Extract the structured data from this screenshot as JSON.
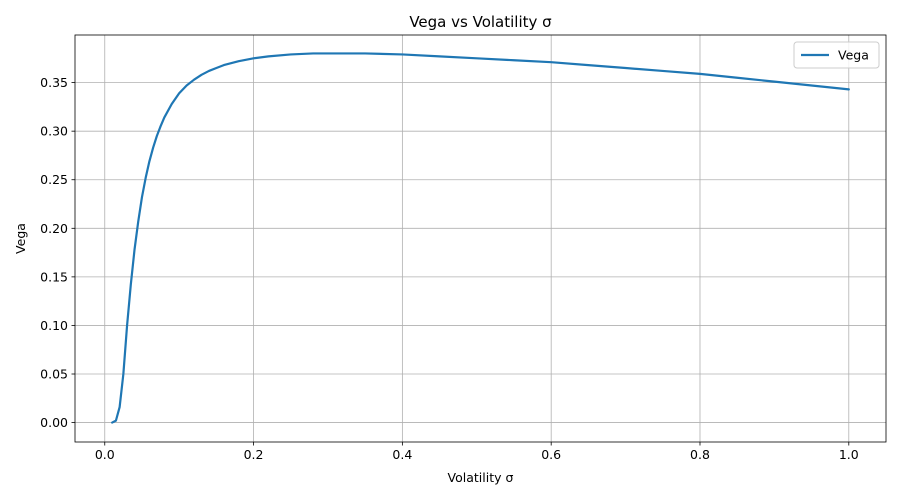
{
  "chart_data": {
    "type": "line",
    "title": "Vega vs Volatility σ",
    "xlabel": "Volatility σ",
    "ylabel": "Vega",
    "xlim": [
      -0.04,
      1.05
    ],
    "ylim": [
      -0.02,
      0.399
    ],
    "xticks": [
      0.0,
      0.2,
      0.4,
      0.6,
      0.8,
      1.0
    ],
    "xtick_labels": [
      "0.0",
      "0.2",
      "0.4",
      "0.6",
      "0.8",
      "1.0"
    ],
    "yticks": [
      0.0,
      0.05,
      0.1,
      0.15,
      0.2,
      0.25,
      0.3,
      0.35
    ],
    "ytick_labels": [
      "0.00",
      "0.05",
      "0.10",
      "0.15",
      "0.20",
      "0.25",
      "0.30",
      "0.35"
    ],
    "grid": true,
    "legend_position": "top-right",
    "series": [
      {
        "name": "Vega",
        "color": "#1f77b4",
        "x": [
          0.01,
          0.015,
          0.02,
          0.025,
          0.03,
          0.035,
          0.04,
          0.045,
          0.05,
          0.055,
          0.06,
          0.065,
          0.07,
          0.075,
          0.08,
          0.09,
          0.1,
          0.11,
          0.12,
          0.13,
          0.14,
          0.15,
          0.16,
          0.18,
          0.2,
          0.22,
          0.25,
          0.28,
          0.3,
          0.32,
          0.35,
          0.4,
          0.45,
          0.5,
          0.55,
          0.6,
          0.65,
          0.7,
          0.75,
          0.8,
          0.85,
          0.9,
          0.95,
          1.0
        ],
        "values": [
          0.0,
          0.002,
          0.016,
          0.05,
          0.1,
          0.142,
          0.178,
          0.207,
          0.232,
          0.252,
          0.269,
          0.283,
          0.295,
          0.305,
          0.314,
          0.328,
          0.339,
          0.347,
          0.353,
          0.358,
          0.362,
          0.365,
          0.368,
          0.372,
          0.375,
          0.377,
          0.379,
          0.38,
          0.38,
          0.38,
          0.38,
          0.379,
          0.377,
          0.375,
          0.373,
          0.371,
          0.368,
          0.365,
          0.362,
          0.359,
          0.355,
          0.351,
          0.347,
          0.343
        ]
      }
    ]
  }
}
